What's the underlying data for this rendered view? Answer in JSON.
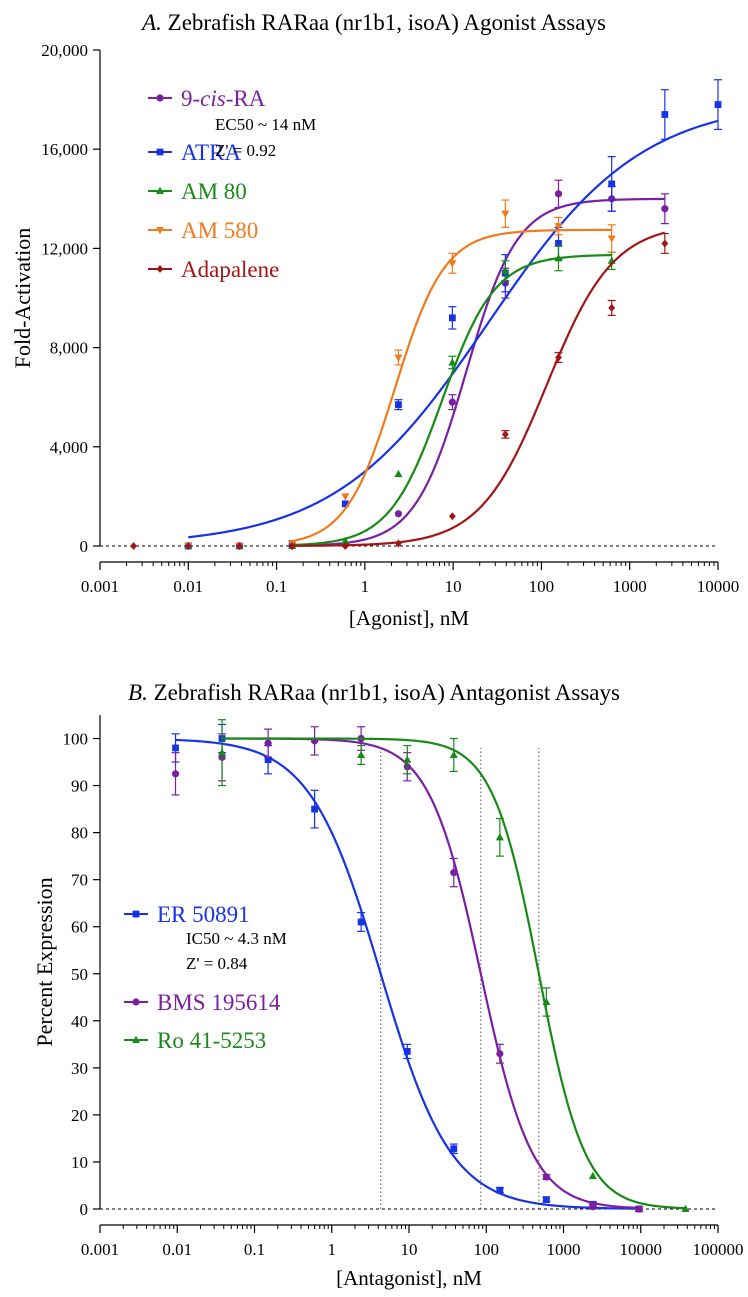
{
  "chart_data": [
    {
      "type": "scatter",
      "title_letter": "A.",
      "title": "Zebrafish RARaa (nr1b1, isoA) Agonist Assays",
      "xlabel": "[Agonist], nM",
      "ylabel": "Fold-Activation",
      "xscale": "log",
      "xlim": [
        0.001,
        10000
      ],
      "ylim": [
        0,
        20000
      ],
      "xticks": [
        0.001,
        0.01,
        0.1,
        1,
        10,
        100,
        1000,
        10000
      ],
      "xtick_labels": [
        "0.001",
        "0.01",
        "0.1",
        "1",
        "10",
        "100",
        "1000",
        "10000"
      ],
      "yticks": [
        0,
        4000,
        8000,
        12000,
        16000,
        20000
      ],
      "ytick_labels": [
        "0",
        "4,000",
        "8,000",
        "12,000",
        "16,000",
        "20,000"
      ],
      "baseline": 0,
      "legend_position": "top-left",
      "stat_lines": [
        "EC50 ~ 14 nM",
        "Z' = 0.92"
      ],
      "series": [
        {
          "name_pre": "9-",
          "name_italic": "cis",
          "name_post": "-RA",
          "color": "#7b1fa2",
          "marker": "circle",
          "x": [
            0.01,
            0.038,
            0.15,
            0.6,
            2.4,
            9.8,
            39,
            156,
            625,
            2500
          ],
          "y": [
            0,
            0,
            0,
            50,
            1300,
            5800,
            10600,
            14200,
            14000,
            13600
          ],
          "err": [
            0,
            0,
            0,
            0,
            0,
            300,
            600,
            550,
            500,
            600
          ],
          "fit": {
            "bottom": 0,
            "top": 14000,
            "ec50": 14,
            "hill": 1.5,
            "xmin": 0.15,
            "xmax": 2500
          }
        },
        {
          "name": "ATRA",
          "color": "#1733e6",
          "marker": "square",
          "x": [
            0.01,
            0.038,
            0.15,
            0.6,
            2.4,
            9.8,
            39,
            156,
            625,
            2500,
            10000
          ],
          "y": [
            0,
            0,
            100,
            1700,
            5700,
            9200,
            11000,
            12200,
            14600,
            17400,
            17800
          ],
          "err": [
            0,
            0,
            0,
            0,
            200,
            450,
            750,
            650,
            1100,
            1000,
            1000
          ],
          "fit": {
            "bottom": 0,
            "top": 18000,
            "ec50": 25,
            "hill": 0.5,
            "xmin": 0.01,
            "xmax": 10000
          }
        },
        {
          "name": "AM 80",
          "color": "#178a17",
          "marker": "triangle-up",
          "x": [
            0.01,
            0.038,
            0.15,
            0.6,
            2.4,
            9.8,
            39,
            156,
            625
          ],
          "y": [
            0,
            0,
            0,
            200,
            2900,
            7400,
            11100,
            11600,
            11500
          ],
          "err": [
            0,
            0,
            0,
            0,
            0,
            250,
            400,
            500,
            350
          ],
          "fit": {
            "bottom": 0,
            "top": 11750,
            "ec50": 7.5,
            "hill": 1.45,
            "xmin": 0.15,
            "xmax": 625
          }
        },
        {
          "name": "AM 580",
          "color": "#f07a1c",
          "marker": "triangle-down",
          "x": [
            0.01,
            0.038,
            0.15,
            0.6,
            2.4,
            9.8,
            39,
            156,
            625
          ],
          "y": [
            0,
            0,
            100,
            2000,
            7600,
            11400,
            13400,
            12900,
            12400
          ],
          "err": [
            0,
            0,
            0,
            0,
            300,
            400,
            550,
            350,
            550
          ],
          "fit": {
            "bottom": 0,
            "top": 12750,
            "ec50": 2.2,
            "hill": 1.55,
            "xmin": 0.15,
            "xmax": 625
          }
        },
        {
          "name": "Adapalene",
          "color": "#a31515",
          "marker": "diamond",
          "x": [
            0.0024,
            0.01,
            0.038,
            0.15,
            0.6,
            2.4,
            9.8,
            39,
            156,
            625,
            2500
          ],
          "y": [
            0,
            0,
            0,
            0,
            0,
            100,
            1200,
            4500,
            7600,
            9600,
            12200
          ],
          "err": [
            0,
            0,
            0,
            0,
            0,
            0,
            0,
            150,
            200,
            300,
            400
          ],
          "fit": {
            "bottom": 0,
            "top": 13000,
            "ec50": 115,
            "hill": 1.15,
            "xmin": 0.15,
            "xmax": 2500
          }
        }
      ]
    },
    {
      "type": "scatter",
      "title_letter": "B.",
      "title": "Zebrafish RARaa (nr1b1, isoA) Antagonist Assays",
      "xlabel": "[Antagonist], nM",
      "ylabel": "Percent Expression",
      "xscale": "log",
      "xlim": [
        0.001,
        100000
      ],
      "ylim": [
        0,
        105
      ],
      "xticks": [
        0.001,
        0.01,
        0.1,
        1,
        10,
        100,
        1000,
        10000,
        100000
      ],
      "xtick_labels": [
        "0.001",
        "0.01",
        "0.1",
        "1",
        "10",
        "100",
        "1000",
        "10000",
        "100000"
      ],
      "yticks": [
        0,
        10,
        20,
        30,
        40,
        50,
        60,
        70,
        80,
        90,
        100
      ],
      "ytick_labels": [
        "0",
        "10",
        "20",
        "30",
        "40",
        "50",
        "60",
        "70",
        "80",
        "90",
        "100"
      ],
      "baseline": 0,
      "vlines": [
        4.3,
        85,
        480
      ],
      "legend_position": "middle-left",
      "stat_lines": [
        "IC50 ~ 4.3 nM",
        "Z' = 0.84"
      ],
      "series": [
        {
          "name": "ER 50891",
          "color": "#1733e6",
          "marker": "square",
          "x": [
            0.0095,
            0.038,
            0.15,
            0.6,
            2.4,
            9.5,
            38,
            150,
            600,
            2400,
            9500
          ],
          "y": [
            98,
            100,
            95.5,
            85,
            61,
            33.5,
            12.8,
            4,
            2,
            1,
            0
          ],
          "err": [
            3,
            3,
            3,
            4,
            2,
            1.5,
            1,
            0.5,
            0.5,
            0.5,
            0.5
          ],
          "fit": {
            "bottom": 0,
            "top": 100,
            "ic50": 4.3,
            "hill": 0.95,
            "xmin": 0.0095,
            "xmax": 9500
          }
        },
        {
          "name": "BMS 195614",
          "color": "#7b1fa2",
          "marker": "circle",
          "x": [
            0.0095,
            0.038,
            0.15,
            0.6,
            2.4,
            9.5,
            38,
            150,
            600,
            2400,
            9500
          ],
          "y": [
            92.5,
            96,
            99,
            99.5,
            100,
            94,
            71.5,
            33,
            6.8,
            0.5,
            0
          ],
          "err": [
            4.5,
            5,
            3,
            3,
            2.5,
            3,
            3,
            2,
            0.5,
            0.5,
            0.5
          ],
          "fit": {
            "bottom": 0,
            "top": 100,
            "ic50": 85,
            "hill": 1.3,
            "xmin": 0.038,
            "xmax": 9500
          }
        },
        {
          "name": "Ro 41-5253",
          "color": "#178a17",
          "marker": "triangle-up",
          "x": [
            0.038,
            2.4,
            9.5,
            38,
            150,
            600,
            2400,
            38000
          ],
          "y": [
            97,
            96.5,
            95.5,
            96.5,
            79,
            44,
            7,
            0
          ],
          "err": [
            7,
            2,
            3,
            3.5,
            4,
            3,
            0,
            0
          ],
          "fit": {
            "bottom": 0,
            "top": 100,
            "ic50": 480,
            "hill": 1.45,
            "xmin": 0.038,
            "xmax": 38000
          }
        }
      ]
    }
  ]
}
